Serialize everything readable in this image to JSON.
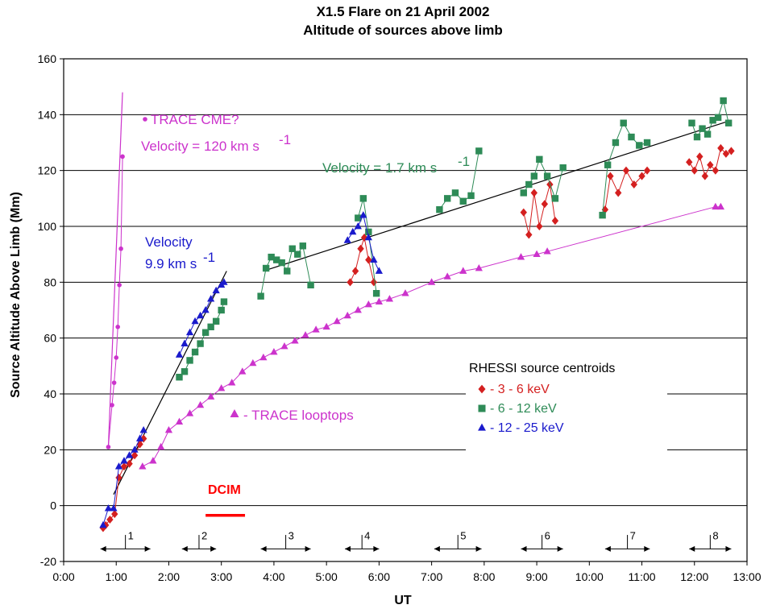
{
  "chart_data": {
    "type": "scatter",
    "title": "X1.5 Flare on 21 April 2002",
    "subtitle": "Altitude of sources above limb",
    "xlabel": "UT",
    "ylabel": "Source Altitude Above Limb (Mm)",
    "x_unit": "hours UT",
    "xlim": [
      0,
      13
    ],
    "ylim": [
      -20,
      160
    ],
    "x_ticks": [
      "0:00",
      "1:00",
      "2:00",
      "3:00",
      "4:00",
      "5:00",
      "6:00",
      "7:00",
      "8:00",
      "9:00",
      "10:00",
      "11:00",
      "12:00",
      "13:00"
    ],
    "y_ticks": [
      -20,
      0,
      20,
      40,
      60,
      80,
      100,
      120,
      140,
      160
    ],
    "grid": "horizontal",
    "colors": {
      "trace": "#cc33cc",
      "band_3_6": "#d42020",
      "band_6_12": "#2e8b57",
      "band_12_25": "#1a1acc",
      "fit": "#000000",
      "dcim": "#ff0000"
    },
    "series": [
      {
        "name": "TRACE CME?",
        "marker": "circle",
        "color": "#cc33cc",
        "x": [
          0.85,
          0.92,
          0.96,
          1.0,
          1.03,
          1.06,
          1.09,
          1.12
        ],
        "y": [
          21,
          36,
          44,
          53,
          64,
          79,
          92,
          125
        ]
      },
      {
        "name": "TRACE looptops",
        "marker": "triangle",
        "color": "#cc33cc",
        "x": [
          1.5,
          1.7,
          1.85,
          2.0,
          2.2,
          2.4,
          2.6,
          2.8,
          3.0,
          3.2,
          3.4,
          3.6,
          3.8,
          4.0,
          4.2,
          4.4,
          4.6,
          4.8,
          5.0,
          5.2,
          5.4,
          5.6,
          5.8,
          6.0,
          6.2,
          6.5,
          7.0,
          7.3,
          7.6,
          7.9,
          8.7,
          9.0,
          9.2,
          12.4,
          12.5
        ],
        "y": [
          14,
          16,
          21,
          27,
          30,
          33,
          36,
          39,
          42,
          44,
          48,
          51,
          53,
          55,
          57,
          59,
          61,
          63,
          64,
          66,
          68,
          70,
          72,
          73,
          74,
          76,
          80,
          82,
          84,
          85,
          89,
          90,
          91,
          107,
          107
        ]
      },
      {
        "name": "3 - 6 keV",
        "marker": "diamond",
        "color": "#d42020",
        "x": [
          0.75,
          0.8,
          0.88,
          0.97,
          1.05,
          1.15,
          1.25,
          1.35,
          1.45,
          1.52,
          5.45,
          5.55,
          5.65,
          5.72,
          5.8,
          5.9,
          8.75,
          8.85,
          8.95,
          9.05,
          9.15,
          9.25,
          9.35,
          10.3,
          10.4,
          10.55,
          10.7,
          10.85,
          11.0,
          11.1,
          11.9,
          12.0,
          12.1,
          12.2,
          12.3,
          12.4,
          12.5,
          12.6,
          12.7
        ],
        "y": [
          -8,
          -7,
          -5,
          -3,
          10,
          14,
          15,
          18,
          22,
          24,
          80,
          84,
          92,
          96,
          88,
          80,
          105,
          97,
          112,
          100,
          108,
          115,
          102,
          106,
          118,
          112,
          120,
          115,
          118,
          120,
          123,
          120,
          125,
          118,
          122,
          120,
          128,
          126,
          127
        ]
      },
      {
        "name": "6 - 12 keV",
        "marker": "square",
        "color": "#2e8b57",
        "x": [
          2.2,
          2.3,
          2.4,
          2.5,
          2.6,
          2.7,
          2.8,
          2.9,
          3.0,
          3.05,
          3.75,
          3.85,
          3.95,
          4.05,
          4.15,
          4.25,
          4.35,
          4.45,
          4.55,
          4.7,
          5.6,
          5.7,
          5.8,
          5.95,
          7.15,
          7.3,
          7.45,
          7.6,
          7.75,
          7.9,
          8.75,
          8.85,
          8.95,
          9.05,
          9.2,
          9.35,
          9.5,
          10.25,
          10.35,
          10.5,
          10.65,
          10.8,
          10.95,
          11.1,
          11.95,
          12.05,
          12.15,
          12.25,
          12.35,
          12.45,
          12.55,
          12.65
        ],
        "y": [
          46,
          48,
          52,
          55,
          58,
          62,
          64,
          66,
          70,
          73,
          75,
          85,
          89,
          88,
          87,
          84,
          92,
          90,
          93,
          79,
          103,
          110,
          98,
          76,
          106,
          110,
          112,
          109,
          111,
          127,
          112,
          115,
          118,
          124,
          118,
          110,
          121,
          104,
          122,
          130,
          137,
          132,
          129,
          130,
          137,
          132,
          135,
          133,
          138,
          139,
          145,
          137
        ]
      },
      {
        "name": "12 - 25 keV",
        "marker": "triangle",
        "color": "#1a1acc",
        "x": [
          0.75,
          0.85,
          0.95,
          1.05,
          1.15,
          1.25,
          1.35,
          1.45,
          1.52,
          2.2,
          2.3,
          2.4,
          2.5,
          2.6,
          2.7,
          2.8,
          2.9,
          3.0,
          3.05,
          5.4,
          5.5,
          5.6,
          5.7,
          5.8,
          5.9,
          6.0
        ],
        "y": [
          -7,
          -1,
          -1,
          14,
          16,
          18,
          20,
          24,
          27,
          54,
          58,
          62,
          66,
          68,
          70,
          74,
          77,
          79,
          80,
          95,
          98,
          100,
          104,
          96,
          88,
          84
        ]
      }
    ],
    "fits": [
      {
        "name": "Velocity = 120 km s-1",
        "x": [
          0.85,
          1.12
        ],
        "y": [
          21,
          148
        ]
      },
      {
        "name": "Velocity 9.9 km s-1",
        "x": [
          0.95,
          3.1
        ],
        "y": [
          4,
          84
        ]
      },
      {
        "name": "Velocity = 1.7 km s-1",
        "x": [
          3.8,
          12.7
        ],
        "y": [
          84,
          138
        ]
      }
    ],
    "annotations": {
      "cme": "TRACE CME?",
      "cme_velocity": "Velocity = 120 km s",
      "v99_line1": "Velocity",
      "v99_line2": "9.9 km s",
      "v17": "Velocity = 1.7 km s",
      "unit_sup": "-1",
      "looptops": "- TRACE looptops",
      "dcim": "DCIM"
    },
    "dcim_bar": {
      "x": [
        2.7,
        3.45
      ],
      "y": -3.5
    },
    "legend": {
      "placement": "lower-right",
      "title": "RHESSI source centroids",
      "items": [
        "- 3 - 6 keV",
        "- 6 - 12 keV",
        "- 12 - 25 keV"
      ]
    },
    "intervals": [
      {
        "label": "1",
        "start": 0.7,
        "end": 1.65
      },
      {
        "label": "2",
        "start": 2.25,
        "end": 2.9
      },
      {
        "label": "3",
        "start": 3.75,
        "end": 4.7
      },
      {
        "label": "4",
        "start": 5.35,
        "end": 6.0
      },
      {
        "label": "5",
        "start": 7.05,
        "end": 7.95
      },
      {
        "label": "6",
        "start": 8.7,
        "end": 9.5
      },
      {
        "label": "7",
        "start": 10.3,
        "end": 11.15
      },
      {
        "label": "8",
        "start": 11.9,
        "end": 12.7
      }
    ]
  }
}
